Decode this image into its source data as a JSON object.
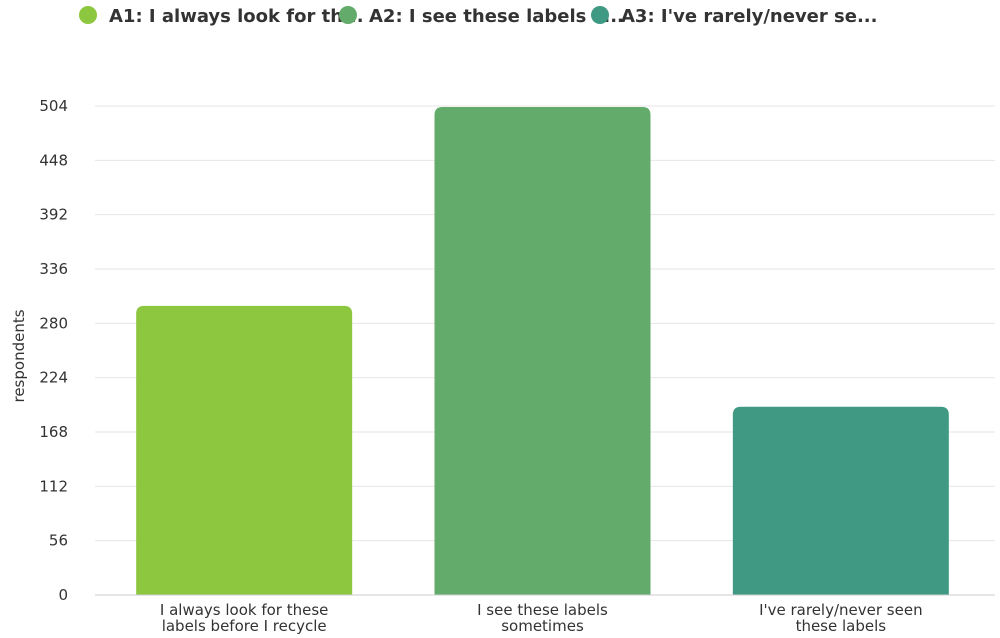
{
  "chart_data": {
    "type": "bar",
    "ylabel": "respondents",
    "ylim": [
      0,
      504
    ],
    "yticks": [
      0,
      56,
      112,
      168,
      224,
      280,
      336,
      392,
      448,
      504
    ],
    "grid": true,
    "legend_position": "top-left",
    "series": [
      {
        "name": "A1: I always look for th...",
        "category_lines": [
          "I always look for these",
          "labels before I recycle"
        ],
        "value": 298,
        "color": "#8dc63f"
      },
      {
        "name": "A2: I see these labels s...",
        "category_lines": [
          "I see these labels",
          "sometimes"
        ],
        "value": 503,
        "color": "#63ab6a"
      },
      {
        "name": "A3: I've rarely/never se...",
        "category_lines": [
          "I've rarely/never seen",
          "these labels"
        ],
        "value": 194,
        "color": "#409982"
      }
    ]
  }
}
